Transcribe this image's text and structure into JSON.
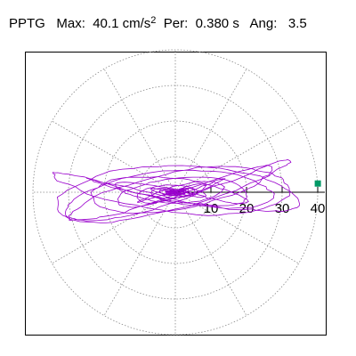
{
  "header": {
    "station": "PPTG",
    "max_label": "Max:",
    "max_value": "40.1",
    "max_unit": "cm/s",
    "max_unit_power": "2",
    "per_label": "Per:",
    "per_value": "0.380",
    "per_unit": "s",
    "ang_label": "Ang:",
    "ang_value": "3.5"
  },
  "chart_data": {
    "type": "line",
    "polar_plot": true,
    "radial_ticks": [
      10,
      20,
      30,
      40
    ],
    "radial_max": 40,
    "max_point": {
      "angle_deg": 3.5,
      "radius": 40.1
    },
    "colors": {
      "trace": "#9900cc",
      "marker": "#009966",
      "grid": "#888888",
      "axis": "#000000"
    },
    "grid_dotted": true,
    "spoke_angles_deg": [
      0,
      30,
      60,
      90,
      120,
      150,
      180,
      210,
      240,
      270,
      300,
      330
    ]
  }
}
